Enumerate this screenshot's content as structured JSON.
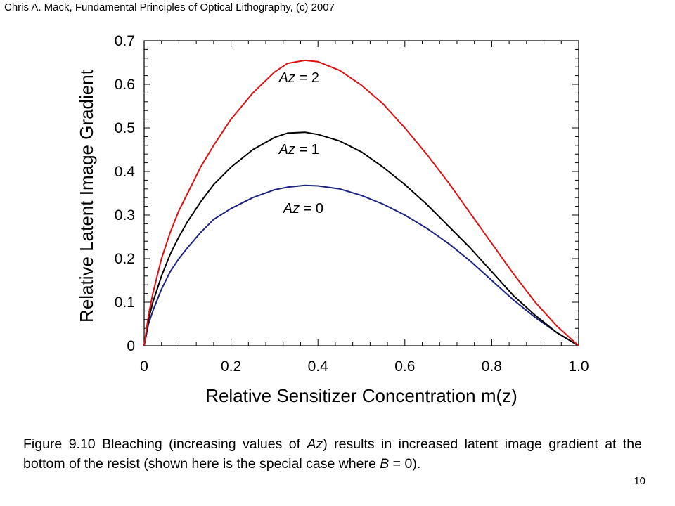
{
  "header": "Chris A. Mack, Fundamental Principles of Optical Lithography, (c) 2007",
  "page_number": "10",
  "caption": {
    "t1": "Figure 9.10  Bleaching (increasing values of ",
    "t2": "Az",
    "t3": ") results in increased latent image gradient at the bottom of the resist (shown here is the special case where ",
    "t4": "B",
    "t5": " = 0)."
  },
  "chart_data": {
    "type": "line",
    "title": "",
    "xlabel": "Relative Sensitizer Concentration m(z)",
    "ylabel": "Relative Latent Image Gradient",
    "xlim": [
      0,
      1.0
    ],
    "ylim": [
      0,
      0.7
    ],
    "x_ticks": [
      {
        "value": 0,
        "label": "0"
      },
      {
        "value": 0.2,
        "label": "0.2"
      },
      {
        "value": 0.4,
        "label": "0.4"
      },
      {
        "value": 0.6,
        "label": "0.6"
      },
      {
        "value": 0.8,
        "label": "0.8"
      },
      {
        "value": 1.0,
        "label": "1.0"
      }
    ],
    "y_ticks": [
      {
        "value": 0,
        "label": "0"
      },
      {
        "value": 0.1,
        "label": "0.1"
      },
      {
        "value": 0.2,
        "label": "0.2"
      },
      {
        "value": 0.3,
        "label": "0.3"
      },
      {
        "value": 0.4,
        "label": "0.4"
      },
      {
        "value": 0.5,
        "label": "0.5"
      },
      {
        "value": 0.6,
        "label": "0.6"
      },
      {
        "value": 0.7,
        "label": "0.7"
      }
    ],
    "grid": false,
    "series": [
      {
        "name": "Az = 0",
        "label_italic": "Az",
        "label_rest": " = 0",
        "color": "#1a237e",
        "label_at": [
          0.32,
          0.305
        ],
        "x": [
          0,
          0.01,
          0.02,
          0.04,
          0.06,
          0.08,
          0.1,
          0.13,
          0.16,
          0.2,
          0.25,
          0.3,
          0.33,
          0.37,
          0.4,
          0.45,
          0.5,
          0.55,
          0.6,
          0.65,
          0.7,
          0.75,
          0.8,
          0.85,
          0.9,
          0.95,
          1.0
        ],
        "y": [
          0,
          0.05,
          0.08,
          0.13,
          0.17,
          0.2,
          0.225,
          0.26,
          0.29,
          0.315,
          0.34,
          0.358,
          0.364,
          0.368,
          0.367,
          0.36,
          0.345,
          0.325,
          0.3,
          0.27,
          0.235,
          0.195,
          0.15,
          0.105,
          0.065,
          0.03,
          0
        ]
      },
      {
        "name": "Az = 1",
        "label_italic": "Az",
        "label_rest": " = 1",
        "color": "#000000",
        "label_at": [
          0.31,
          0.44
        ],
        "x": [
          0,
          0.01,
          0.02,
          0.04,
          0.06,
          0.08,
          0.1,
          0.13,
          0.16,
          0.2,
          0.25,
          0.3,
          0.33,
          0.37,
          0.4,
          0.45,
          0.5,
          0.55,
          0.6,
          0.65,
          0.7,
          0.75,
          0.8,
          0.85,
          0.9,
          0.95,
          1.0
        ],
        "y": [
          0,
          0.06,
          0.1,
          0.16,
          0.21,
          0.25,
          0.285,
          0.33,
          0.37,
          0.41,
          0.45,
          0.478,
          0.488,
          0.49,
          0.485,
          0.47,
          0.445,
          0.41,
          0.37,
          0.325,
          0.275,
          0.225,
          0.17,
          0.115,
          0.07,
          0.03,
          0
        ]
      },
      {
        "name": "Az = 2",
        "label_italic": "Az",
        "label_rest": " = 2",
        "color": "#dd1111",
        "label_at": [
          0.31,
          0.605
        ],
        "x": [
          0,
          0.01,
          0.02,
          0.04,
          0.06,
          0.08,
          0.1,
          0.13,
          0.16,
          0.2,
          0.25,
          0.3,
          0.33,
          0.37,
          0.4,
          0.45,
          0.5,
          0.55,
          0.6,
          0.65,
          0.7,
          0.75,
          0.8,
          0.85,
          0.9,
          0.95,
          1.0
        ],
        "y": [
          0,
          0.07,
          0.12,
          0.2,
          0.26,
          0.31,
          0.35,
          0.41,
          0.46,
          0.52,
          0.58,
          0.628,
          0.648,
          0.655,
          0.652,
          0.632,
          0.598,
          0.555,
          0.5,
          0.44,
          0.375,
          0.305,
          0.235,
          0.165,
          0.1,
          0.045,
          0
        ]
      }
    ]
  }
}
